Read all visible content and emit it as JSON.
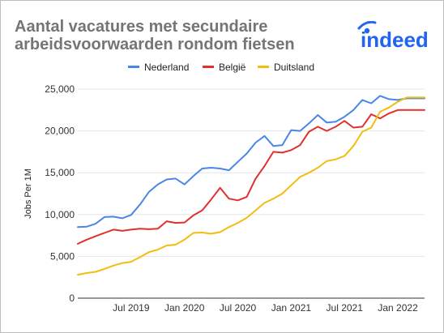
{
  "title_line1": "Aantal vacatures met secundaire",
  "title_line2": "arbeidsvoorwaarden rondom fietsen",
  "logo_text": "indeed",
  "colors": {
    "blue": "#4a86e8",
    "red": "#e0302f",
    "yellow": "#f2bd0f",
    "grid": "#e6e6e6",
    "axis": "#333333",
    "title": "#757575",
    "logo": "#2164f3"
  },
  "chart_data": {
    "type": "line",
    "ylabel": "Jobs Per 1M",
    "xlabel": "",
    "ylim": [
      0,
      25000
    ],
    "yticks": [
      0,
      5000,
      10000,
      15000,
      20000,
      25000
    ],
    "ytick_labels": [
      "0",
      "5,000",
      "10,000",
      "15,000",
      "20,000",
      "25,000"
    ],
    "xlim": [
      "2019-01",
      "2022-04"
    ],
    "xticks": [
      "2019-07",
      "2020-01",
      "2020-07",
      "2021-01",
      "2021-07",
      "2022-01"
    ],
    "xtick_labels": [
      "Jul 2019",
      "Jan 2020",
      "Jul 2020",
      "Jan 2021",
      "Jul 2021",
      "Jan 2022"
    ],
    "legend_position": "top",
    "x": [
      "2019-01",
      "2019-02",
      "2019-03",
      "2019-04",
      "2019-05",
      "2019-06",
      "2019-07",
      "2019-08",
      "2019-09",
      "2019-10",
      "2019-11",
      "2019-12",
      "2020-01",
      "2020-02",
      "2020-03",
      "2020-04",
      "2020-05",
      "2020-06",
      "2020-07",
      "2020-08",
      "2020-09",
      "2020-10",
      "2020-11",
      "2020-12",
      "2021-01",
      "2021-02",
      "2021-03",
      "2021-04",
      "2021-05",
      "2021-06",
      "2021-07",
      "2021-08",
      "2021-09",
      "2021-10",
      "2021-11",
      "2021-12",
      "2022-01",
      "2022-02",
      "2022-03",
      "2022-04"
    ],
    "series": [
      {
        "name": "Nederland",
        "color": "#4a86e8",
        "values": [
          8500,
          8550,
          8900,
          9700,
          9750,
          9550,
          9950,
          11200,
          12700,
          13600,
          14200,
          14300,
          13600,
          14600,
          15500,
          15600,
          15500,
          15300,
          16300,
          17300,
          18600,
          19400,
          18200,
          18300,
          20100,
          20000,
          20900,
          21900,
          21000,
          21100,
          21700,
          22500,
          23700,
          23300,
          24200,
          23800,
          23700,
          23900,
          23900,
          23900
        ]
      },
      {
        "name": "België",
        "color": "#e0302f",
        "values": [
          6500,
          7000,
          7400,
          7800,
          8200,
          8050,
          8200,
          8300,
          8250,
          8300,
          9200,
          9000,
          9050,
          9900,
          10500,
          11800,
          13200,
          11900,
          11700,
          12100,
          14300,
          15800,
          17500,
          17400,
          17700,
          18300,
          19900,
          20500,
          20000,
          20500,
          21200,
          20400,
          20500,
          22000,
          21500,
          22100,
          22500,
          22500,
          22500,
          22500
        ]
      },
      {
        "name": "Duitsland",
        "color": "#f2bd0f",
        "values": [
          2800,
          3000,
          3150,
          3500,
          3900,
          4200,
          4350,
          4900,
          5500,
          5800,
          6300,
          6400,
          7000,
          7800,
          7850,
          7700,
          7900,
          8500,
          9000,
          9600,
          10500,
          11400,
          11900,
          12500,
          13500,
          14500,
          15000,
          15600,
          16400,
          16600,
          17000,
          18200,
          19900,
          20400,
          22300,
          22800,
          23500,
          24000,
          24000,
          24000
        ]
      }
    ]
  }
}
